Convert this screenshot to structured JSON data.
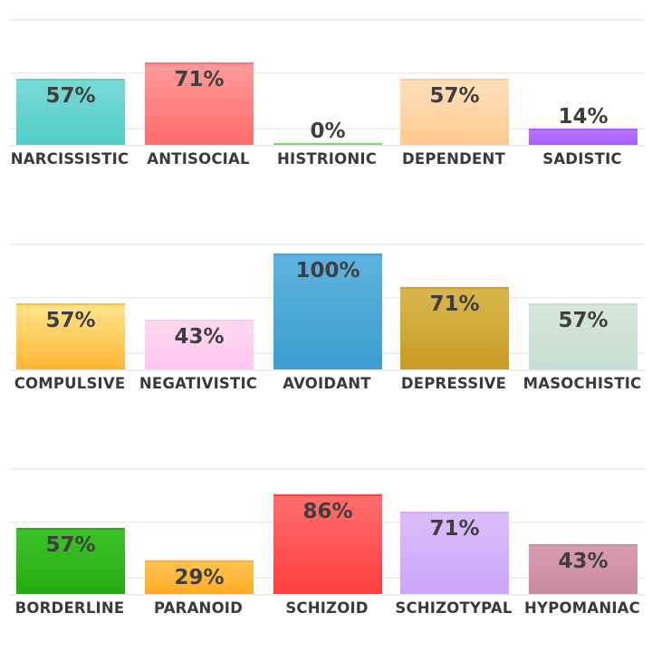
{
  "chart_data": [
    {
      "type": "bar",
      "categories": [
        "NARCISSISTIC",
        "ANTISOCIAL",
        "HISTRIONIC",
        "DEPENDENT",
        "SADISTIC"
      ],
      "values": [
        57,
        71,
        0,
        57,
        14
      ],
      "value_labels": [
        "57%",
        "71%",
        "0%",
        "57%",
        "14%"
      ],
      "colors": [
        [
          "#7ad9d6",
          "#4fcfc6"
        ],
        [
          "#ff9b9b",
          "#ff6b6b"
        ],
        [
          "#9be08c",
          "#7cd36d"
        ],
        [
          "#ffe0bd",
          "#ffc98f"
        ],
        [
          "#c07bff",
          "#a35cf7"
        ]
      ],
      "ylim": [
        0,
        100
      ],
      "grid": true
    },
    {
      "type": "bar",
      "categories": [
        "COMPULSIVE",
        "NEGATIVISTIC",
        "AVOIDANT",
        "DEPRESSIVE",
        "MASOCHISTIC"
      ],
      "values": [
        57,
        43,
        100,
        71,
        57
      ],
      "value_labels": [
        "57%",
        "43%",
        "100%",
        "71%",
        "57%"
      ],
      "colors": [
        [
          "#ffe58c",
          "#ffb733"
        ],
        [
          "#ffd8f2",
          "#ffc6ee"
        ],
        [
          "#5fb3dc",
          "#3a9ed0"
        ],
        [
          "#d9b64e",
          "#c99c24"
        ],
        [
          "#d8e6dc",
          "#c6ddd2"
        ]
      ],
      "ylim": [
        0,
        100
      ],
      "grid": true
    },
    {
      "type": "bar",
      "categories": [
        "BORDERLINE",
        "PARANOID",
        "SCHIZOID",
        "SCHIZOTYPAL",
        "HYPOMANIAC"
      ],
      "values": [
        57,
        29,
        86,
        71,
        43
      ],
      "value_labels": [
        "57%",
        "29%",
        "86%",
        "71%",
        "43%"
      ],
      "colors": [
        [
          "#3ec42a",
          "#23ac0e"
        ],
        [
          "#ffc454",
          "#ffad22"
        ],
        [
          "#ff6f6f",
          "#ff3c3c"
        ],
        [
          "#dcbdfb",
          "#cba6f7"
        ],
        [
          "#d89cb0",
          "#c98aa0"
        ]
      ],
      "ylim": [
        0,
        100
      ],
      "grid": true
    }
  ]
}
